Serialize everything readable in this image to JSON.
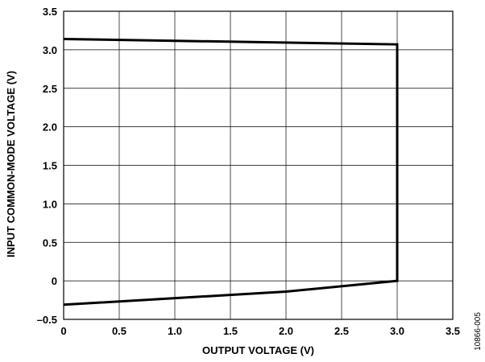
{
  "chart_data": {
    "type": "line",
    "title": "",
    "xlabel": "OUTPUT VOLTAGE (V)",
    "ylabel": "INPUT COMMON-MODE VOLTAGE (V)",
    "xlim": [
      0,
      3.5
    ],
    "ylim": [
      -0.5,
      3.5
    ],
    "x_ticks": [
      "0",
      "0.5",
      "1.0",
      "1.5",
      "2.0",
      "2.5",
      "3.0",
      "3.5"
    ],
    "y_ticks": [
      "3.5",
      "3.0",
      "2.5",
      "2.0",
      "1.5",
      "1.0",
      "0.5",
      "0",
      "–0.5"
    ],
    "grid": true,
    "legend": "none",
    "series": [
      {
        "x": [
          0,
          3.0,
          3.0,
          2.0,
          0
        ],
        "y": [
          3.14,
          3.07,
          0.0,
          -0.14,
          -0.31
        ]
      }
    ]
  },
  "figure_id": "10866-005"
}
